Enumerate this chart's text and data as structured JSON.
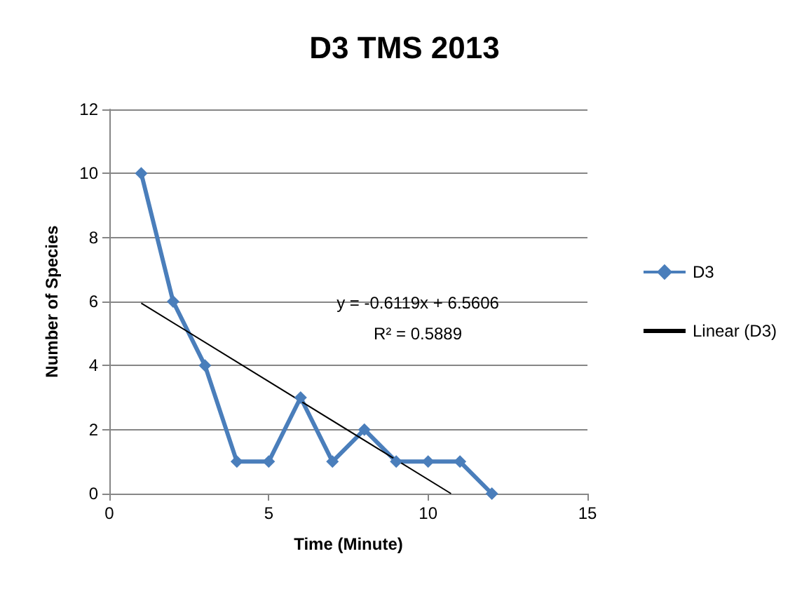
{
  "chart_data": {
    "type": "line",
    "title": "D3 TMS 2013",
    "xlabel": "Time (Minute)",
    "ylabel": "Number of Species",
    "xlim": [
      0,
      15
    ],
    "xticks": [
      0,
      5,
      10,
      15
    ],
    "ylim": [
      0,
      12
    ],
    "yticks": [
      0,
      2,
      4,
      6,
      8,
      10,
      12
    ],
    "grid": "y",
    "legend": "right",
    "marker": "diamond",
    "series": [
      {
        "name": "D3",
        "color": "#4a7ebb",
        "x": [
          1,
          2,
          3,
          4,
          5,
          6,
          7,
          8,
          9,
          10,
          11,
          12
        ],
        "values": [
          10,
          6,
          4,
          1,
          1,
          3,
          1,
          2,
          1,
          1,
          1,
          0
        ]
      },
      {
        "name": "Linear (D3)",
        "type": "line",
        "marker": "none",
        "color": "#000000",
        "x": [
          1,
          10.72
        ],
        "values": [
          5.95,
          0
        ]
      }
    ],
    "annotations": [
      "y = -0.6119x + 6.5606",
      "R² = 0.5889"
    ]
  }
}
